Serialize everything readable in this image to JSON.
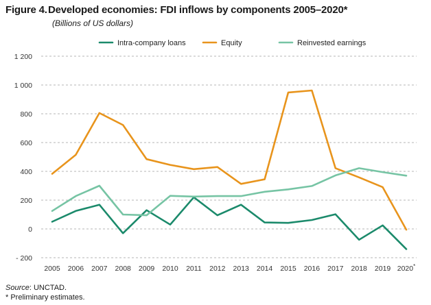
{
  "figure": {
    "number": "Figure 4.",
    "title": "Developed economies: FDI inflows by components 2005–2020*",
    "subtitle": "(Billions of US dollars)"
  },
  "chart_data": {
    "type": "line",
    "title": "Developed economies: FDI inflows by components 2005–2020*",
    "subtitle": "(Billions of US dollars)",
    "xlabel": "",
    "ylabel": "",
    "x": [
      "2005",
      "2006",
      "2007",
      "2008",
      "2009",
      "2010",
      "2011",
      "2012",
      "2013",
      "2014",
      "2015",
      "2016",
      "2017",
      "2018",
      "2019",
      "2020*"
    ],
    "ylim": [
      -200,
      1200
    ],
    "yticks": [
      -200,
      0,
      200,
      400,
      600,
      800,
      1000,
      1200
    ],
    "ytick_labels": [
      "- 200",
      "0",
      "200",
      "400",
      "600",
      "800",
      "1 000",
      "1 200"
    ],
    "grid": "horizontal dashed",
    "legend_position": "top",
    "series": [
      {
        "name": "Intra-company loans",
        "color": "#1b8a6b",
        "values": [
          50,
          125,
          168,
          -30,
          130,
          30,
          220,
          95,
          168,
          45,
          42,
          62,
          102,
          -75,
          25,
          -140
        ]
      },
      {
        "name": "Equity",
        "color": "#e8941c",
        "values": [
          383,
          515,
          805,
          722,
          485,
          445,
          415,
          430,
          313,
          345,
          948,
          962,
          422,
          358,
          290,
          -5
        ]
      },
      {
        "name": "Reinvested earnings",
        "color": "#76c4a4",
        "values": [
          125,
          228,
          300,
          100,
          95,
          230,
          225,
          228,
          228,
          258,
          275,
          298,
          372,
          422,
          395,
          370
        ]
      }
    ]
  },
  "notes": {
    "source_label": "Source",
    "source_text": ": UNCTAD.",
    "footnote": "* Preliminary estimates."
  }
}
